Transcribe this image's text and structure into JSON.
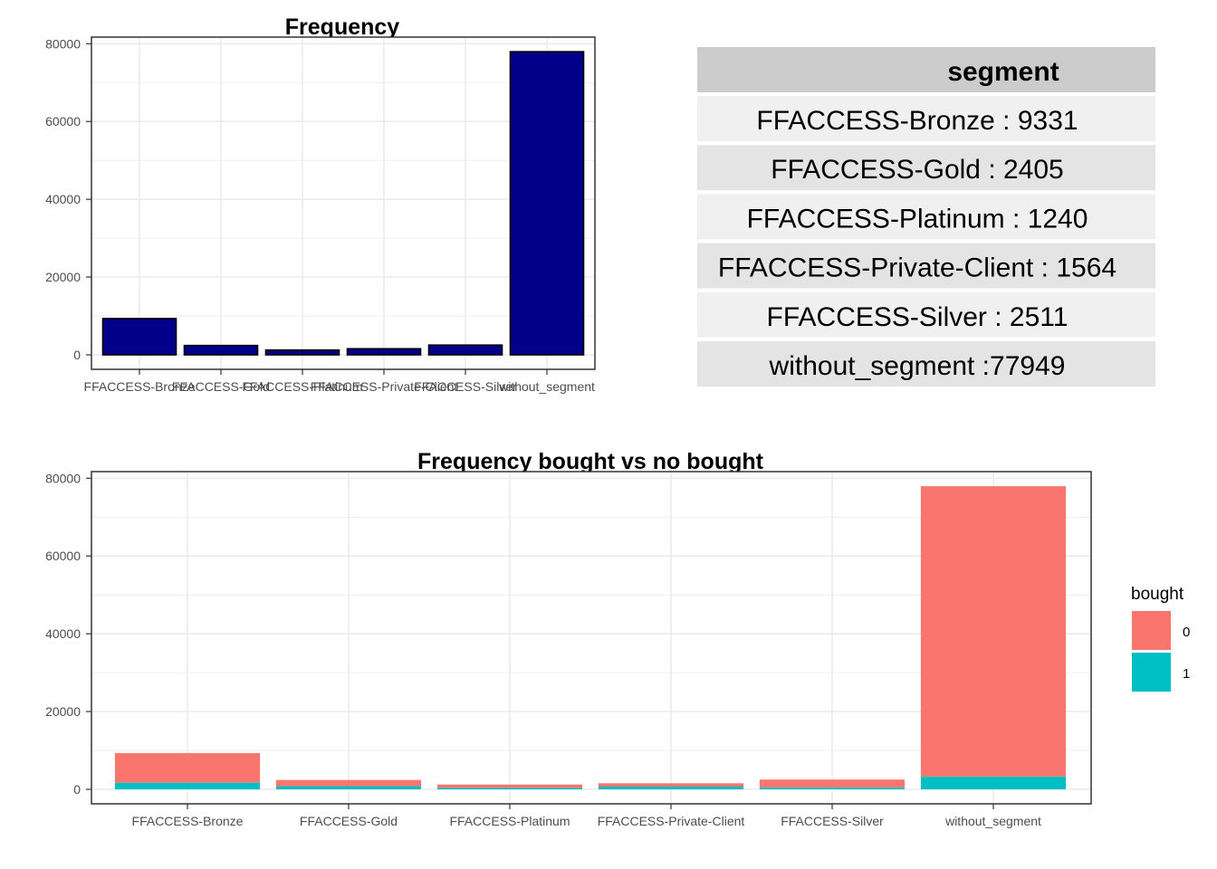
{
  "table": {
    "header": "segment",
    "rows": [
      {
        "name": "FFACCESS-Bronze",
        "value": ": 9331"
      },
      {
        "name": "FFACCESS-Gold",
        "value": ": 2405"
      },
      {
        "name": "FFACCESS-Platinum",
        "value": ": 1240"
      },
      {
        "name": "FFACCESS-Private-Client",
        "value": ": 1564"
      },
      {
        "name": "FFACCESS-Silver",
        "value": ": 2511"
      },
      {
        "name": "without_segment",
        "value": ":77949"
      }
    ]
  },
  "chart_data": [
    {
      "type": "bar",
      "title": "Frequency",
      "xlabel": "",
      "ylabel": "",
      "categories": [
        "FFACCESS-Bronze",
        "FFACCESS-Gold",
        "FFACCESS-Platinum",
        "FFACCESS-Private-Client",
        "FFACCESS-Silver",
        "without_segment"
      ],
      "values": [
        9331,
        2405,
        1240,
        1564,
        2511,
        77949
      ],
      "ylim": [
        0,
        80000
      ],
      "yticks": [
        "0",
        "20000",
        "40000",
        "60000",
        "80000"
      ],
      "grid": true,
      "colors": {
        "fill": "#00008b",
        "stroke": "#000000"
      }
    },
    {
      "type": "bar",
      "stacked": true,
      "title": "Frequency bought vs no bought",
      "xlabel": "",
      "ylabel": "",
      "categories": [
        "FFACCESS-Bronze",
        "FFACCESS-Gold",
        "FFACCESS-Platinum",
        "FFACCESS-Private-Client",
        "FFACCESS-Silver",
        "without_segment"
      ],
      "series": [
        {
          "name": "1",
          "color": "#00bfc4",
          "values": [
            1700,
            800,
            400,
            700,
            500,
            3300
          ]
        },
        {
          "name": "0",
          "color": "#f8766d",
          "values": [
            7631,
            1605,
            840,
            864,
            2011,
            74649
          ]
        }
      ],
      "ylim": [
        0,
        80000
      ],
      "yticks": [
        "0",
        "20000",
        "40000",
        "60000",
        "80000"
      ],
      "grid": true,
      "legend": {
        "title": "bought",
        "entries": [
          "0",
          "1"
        ],
        "placement": "right"
      }
    }
  ]
}
